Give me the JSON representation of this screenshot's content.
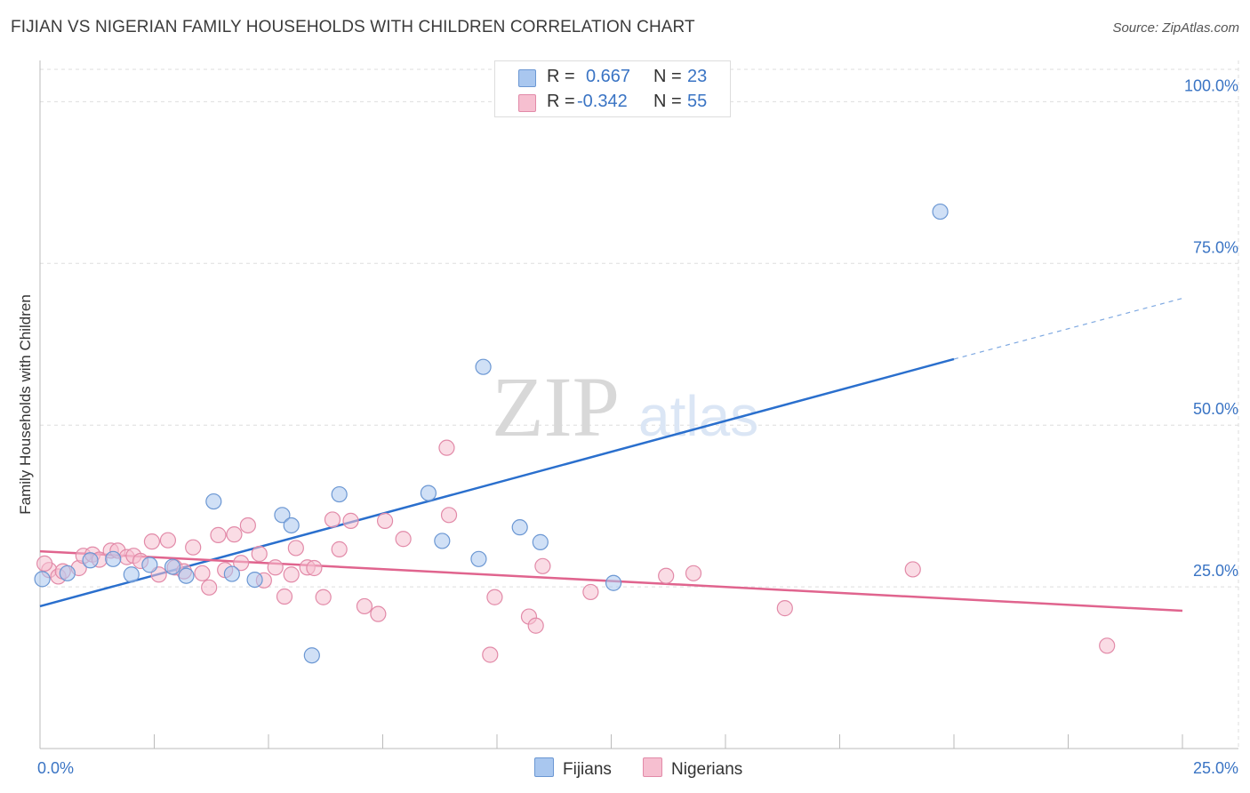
{
  "header": {
    "title": "FIJIAN VS NIGERIAN FAMILY HOUSEHOLDS WITH CHILDREN CORRELATION CHART",
    "source": "Source: ZipAtlas.com"
  },
  "watermark": {
    "zip": "ZIP",
    "atlas": "atlas"
  },
  "legend": {
    "rows": [
      {
        "r_label": "R =",
        "r_value": "0.667",
        "n_label": "N =",
        "n_value": "23"
      },
      {
        "r_label": "R =",
        "r_value": "-0.342",
        "n_label": "N =",
        "n_value": "55"
      }
    ]
  },
  "colors": {
    "fijian_fill": "#a9c7ef",
    "fijian_stroke": "#6b97d3",
    "fijian_line": "#2a6fcd",
    "nigerian_fill": "#f6bfd0",
    "nigerian_stroke": "#e28aa8",
    "nigerian_line": "#e0648e",
    "grid": "#dddddd",
    "tick_label": "#3a74c4"
  },
  "chart_data": {
    "type": "scatter",
    "title": "FIJIAN VS NIGERIAN FAMILY HOUSEHOLDS WITH CHILDREN CORRELATION CHART",
    "xlabel": "",
    "ylabel": "Family Households with Children",
    "xlim": [
      0,
      25
    ],
    "ylim": [
      0,
      105
    ],
    "x_tick_labels": [
      "0.0%",
      "25.0%"
    ],
    "y_ticks": [
      25,
      50,
      75,
      100
    ],
    "y_tick_labels": [
      "25.0%",
      "50.0%",
      "75.0%",
      "100.0%"
    ],
    "grid": true,
    "legend_position": "bottom-center",
    "series": [
      {
        "name": "Fijians",
        "r": 0.667,
        "n": 23,
        "trend": {
          "x0": 0,
          "y0": 22.0,
          "x1": 20,
          "y1": 60.2,
          "dashed_to_x": 25,
          "dashed_to_y": 69.6
        },
        "points": [
          [
            0.05,
            26.2
          ],
          [
            0.6,
            27.1
          ],
          [
            1.1,
            29.1
          ],
          [
            1.6,
            29.3
          ],
          [
            2.0,
            26.9
          ],
          [
            2.4,
            28.4
          ],
          [
            2.9,
            28.1
          ],
          [
            3.2,
            26.7
          ],
          [
            3.8,
            38.2
          ],
          [
            4.2,
            27.0
          ],
          [
            4.7,
            26.1
          ],
          [
            5.3,
            36.1
          ],
          [
            5.5,
            34.5
          ],
          [
            5.95,
            14.4
          ],
          [
            6.55,
            39.3
          ],
          [
            8.5,
            39.5
          ],
          [
            8.8,
            32.1
          ],
          [
            9.6,
            29.3
          ],
          [
            9.7,
            59.0
          ],
          [
            10.5,
            34.2
          ],
          [
            10.95,
            31.9
          ],
          [
            12.55,
            25.6
          ],
          [
            19.7,
            83.0
          ]
        ]
      },
      {
        "name": "Nigerians",
        "r": -0.342,
        "n": 55,
        "trend": {
          "x0": 0,
          "y0": 30.5,
          "x1": 25,
          "y1": 21.3
        },
        "points": [
          [
            0.2,
            27.6
          ],
          [
            0.4,
            26.6
          ],
          [
            0.5,
            27.4
          ],
          [
            0.85,
            27.9
          ],
          [
            0.95,
            29.8
          ],
          [
            1.15,
            30.0
          ],
          [
            1.3,
            29.2
          ],
          [
            1.55,
            30.6
          ],
          [
            1.7,
            30.6
          ],
          [
            1.9,
            29.6
          ],
          [
            2.05,
            29.8
          ],
          [
            2.2,
            29.0
          ],
          [
            2.45,
            32.0
          ],
          [
            2.6,
            26.9
          ],
          [
            2.8,
            32.2
          ],
          [
            2.95,
            28.0
          ],
          [
            3.15,
            27.4
          ],
          [
            3.35,
            31.1
          ],
          [
            3.55,
            27.1
          ],
          [
            3.7,
            24.9
          ],
          [
            3.9,
            33.0
          ],
          [
            4.05,
            27.6
          ],
          [
            4.25,
            33.1
          ],
          [
            4.4,
            28.7
          ],
          [
            4.55,
            34.5
          ],
          [
            4.8,
            30.1
          ],
          [
            4.9,
            26.0
          ],
          [
            5.15,
            28.0
          ],
          [
            5.35,
            23.5
          ],
          [
            5.5,
            26.9
          ],
          [
            5.6,
            31.0
          ],
          [
            5.85,
            28.0
          ],
          [
            6.0,
            27.9
          ],
          [
            6.2,
            23.4
          ],
          [
            6.4,
            35.4
          ],
          [
            6.55,
            30.8
          ],
          [
            6.8,
            35.2
          ],
          [
            7.1,
            22.0
          ],
          [
            7.4,
            20.8
          ],
          [
            7.55,
            35.2
          ],
          [
            7.95,
            32.4
          ],
          [
            8.9,
            46.5
          ],
          [
            8.95,
            36.1
          ],
          [
            9.85,
            14.5
          ],
          [
            9.95,
            23.4
          ],
          [
            10.7,
            20.4
          ],
          [
            10.85,
            19.0
          ],
          [
            11.0,
            28.2
          ],
          [
            12.05,
            24.2
          ],
          [
            13.7,
            26.7
          ],
          [
            14.3,
            27.1
          ],
          [
            16.3,
            21.7
          ],
          [
            19.1,
            27.7
          ],
          [
            23.35,
            15.9
          ],
          [
            0.1,
            28.6
          ]
        ]
      }
    ]
  },
  "bottom_legend": {
    "fijians": "Fijians",
    "nigerians": "Nigerians"
  }
}
